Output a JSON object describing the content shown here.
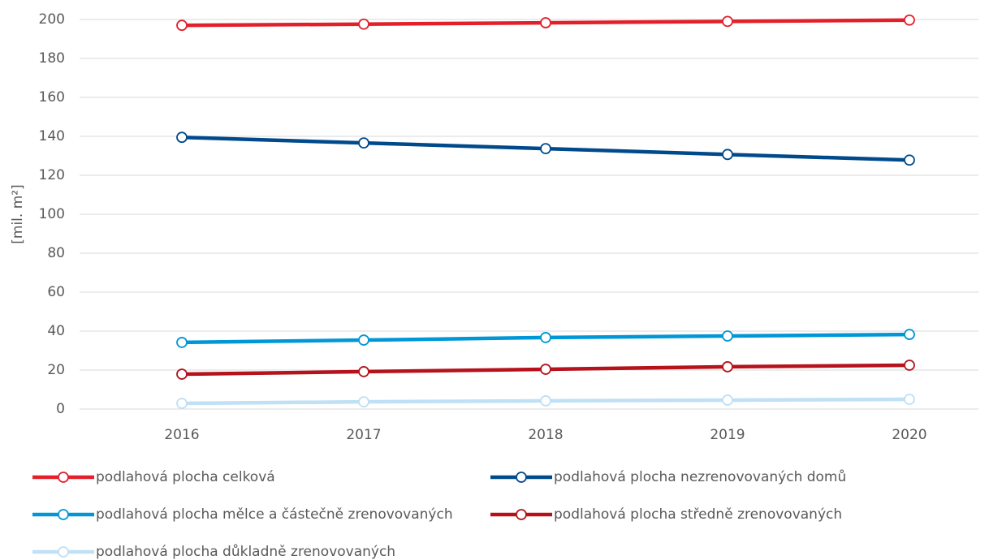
{
  "chart_data": {
    "type": "line",
    "y_label": "[mil. m²]",
    "categories": [
      "2016",
      "2017",
      "2018",
      "2019",
      "2020"
    ],
    "series": [
      {
        "name": "podlahová plocha celková",
        "color": "#e3202a",
        "values": [
          197,
          197.6,
          198.3,
          199,
          199.7
        ]
      },
      {
        "name": "podlahová plocha nezrenovovaných domů",
        "color": "#004a8c",
        "values": [
          139.5,
          136.6,
          133.7,
          130.7,
          127.8
        ]
      },
      {
        "name": "podlahová plocha mělce a částečně zrenovovaných",
        "color": "#0097d7",
        "values": [
          34.2,
          35.4,
          36.7,
          37.5,
          38.3
        ]
      },
      {
        "name": "podlahová plocha středně zrenovovaných",
        "color": "#b5121b",
        "values": [
          17.9,
          19.2,
          20.4,
          21.7,
          22.5
        ]
      },
      {
        "name": "podlahová plocha důkladně zrenovovaných",
        "color": "#bfe0f5",
        "values": [
          2.9,
          3.7,
          4.2,
          4.6,
          5
        ]
      }
    ],
    "ylim": [
      0,
      200
    ],
    "yticks": [
      0,
      20,
      40,
      60,
      80,
      100,
      120,
      140,
      160,
      180,
      200
    ],
    "grid": true,
    "legend": "bottom"
  }
}
